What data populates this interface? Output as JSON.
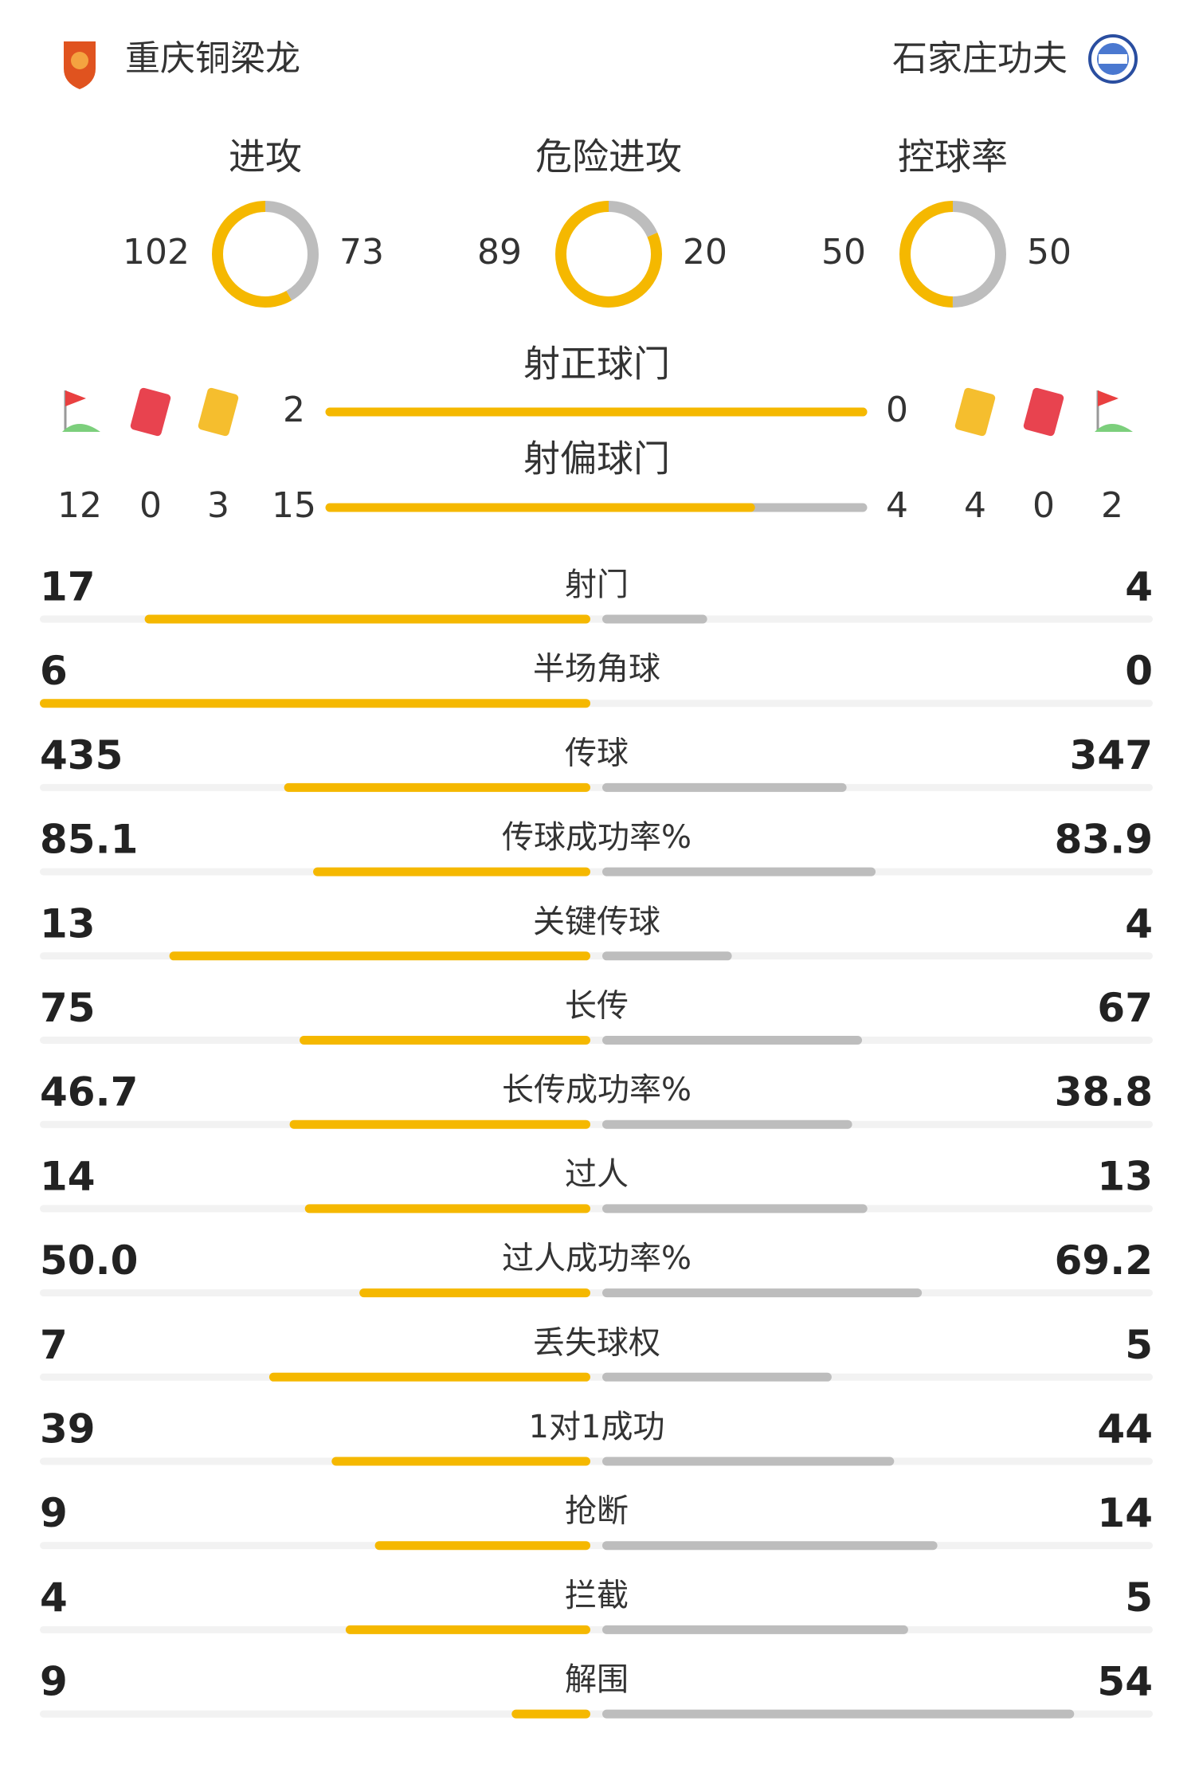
{
  "header": {
    "home_team": "重庆铜梁龙",
    "away_team": "石家庄功夫"
  },
  "summary": [
    {
      "label": "进攻",
      "home": 102,
      "away": 73
    },
    {
      "label": "危险进攻",
      "home": 89,
      "away": 20
    },
    {
      "label": "控球率",
      "home": 50,
      "away": 50
    }
  ],
  "shots_on_target": {
    "label": "射正球门",
    "home": 2,
    "away": 0
  },
  "shots_off_target": {
    "label": "射偏球门",
    "home": 15,
    "away": 4
  },
  "discipline": {
    "home": {
      "corners": 12,
      "red_cards": 0,
      "yellow_cards": 3
    },
    "away": {
      "yellow_cards": 4,
      "red_cards": 0,
      "corners": 2
    }
  },
  "stats": [
    {
      "label": "射门",
      "home": 17,
      "away": 4
    },
    {
      "label": "半场角球",
      "home": 6,
      "away": 0
    },
    {
      "label": "传球",
      "home": 435,
      "away": 347
    },
    {
      "label": "传球成功率%",
      "home": 85.1,
      "away": 83.9
    },
    {
      "label": "关键传球",
      "home": 13,
      "away": 4
    },
    {
      "label": "长传",
      "home": 75,
      "away": 67
    },
    {
      "label": "长传成功率%",
      "home": 46.7,
      "away": 38.8
    },
    {
      "label": "过人",
      "home": 14,
      "away": 13
    },
    {
      "label": "过人成功率%",
      "home": "50.0",
      "away": 69.2
    },
    {
      "label": "丢失球权",
      "home": 7,
      "away": 5
    },
    {
      "label": "1对1成功",
      "home": 39,
      "away": 44
    },
    {
      "label": "抢断",
      "home": 9,
      "away": 14
    },
    {
      "label": "拦截",
      "home": 4,
      "away": 5
    },
    {
      "label": "解围",
      "home": 9,
      "away": 54
    }
  ]
}
